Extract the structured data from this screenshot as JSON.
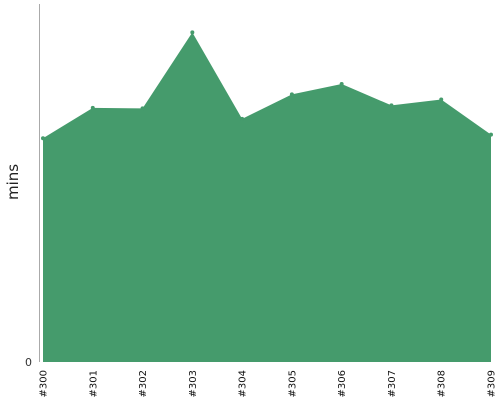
{
  "chart_data": {
    "type": "area",
    "title": "",
    "xlabel": "",
    "ylabel": "mins",
    "categories": [
      "#300",
      "#301",
      "#302",
      "#303",
      "#304",
      "#305",
      "#306",
      "#307",
      "#308",
      "#309"
    ],
    "series": [
      {
        "values": [
          75,
          85.2,
          85,
          110.5,
          81.5,
          89.7,
          93.2,
          86,
          88,
          76.2
        ]
      }
    ],
    "y_tick_labels": [
      "0"
    ],
    "ylim": [
      0,
      120
    ],
    "grid": false,
    "legend": "none",
    "colors": {
      "fill": "#459b6c",
      "axis": "#aaaaaa"
    }
  }
}
